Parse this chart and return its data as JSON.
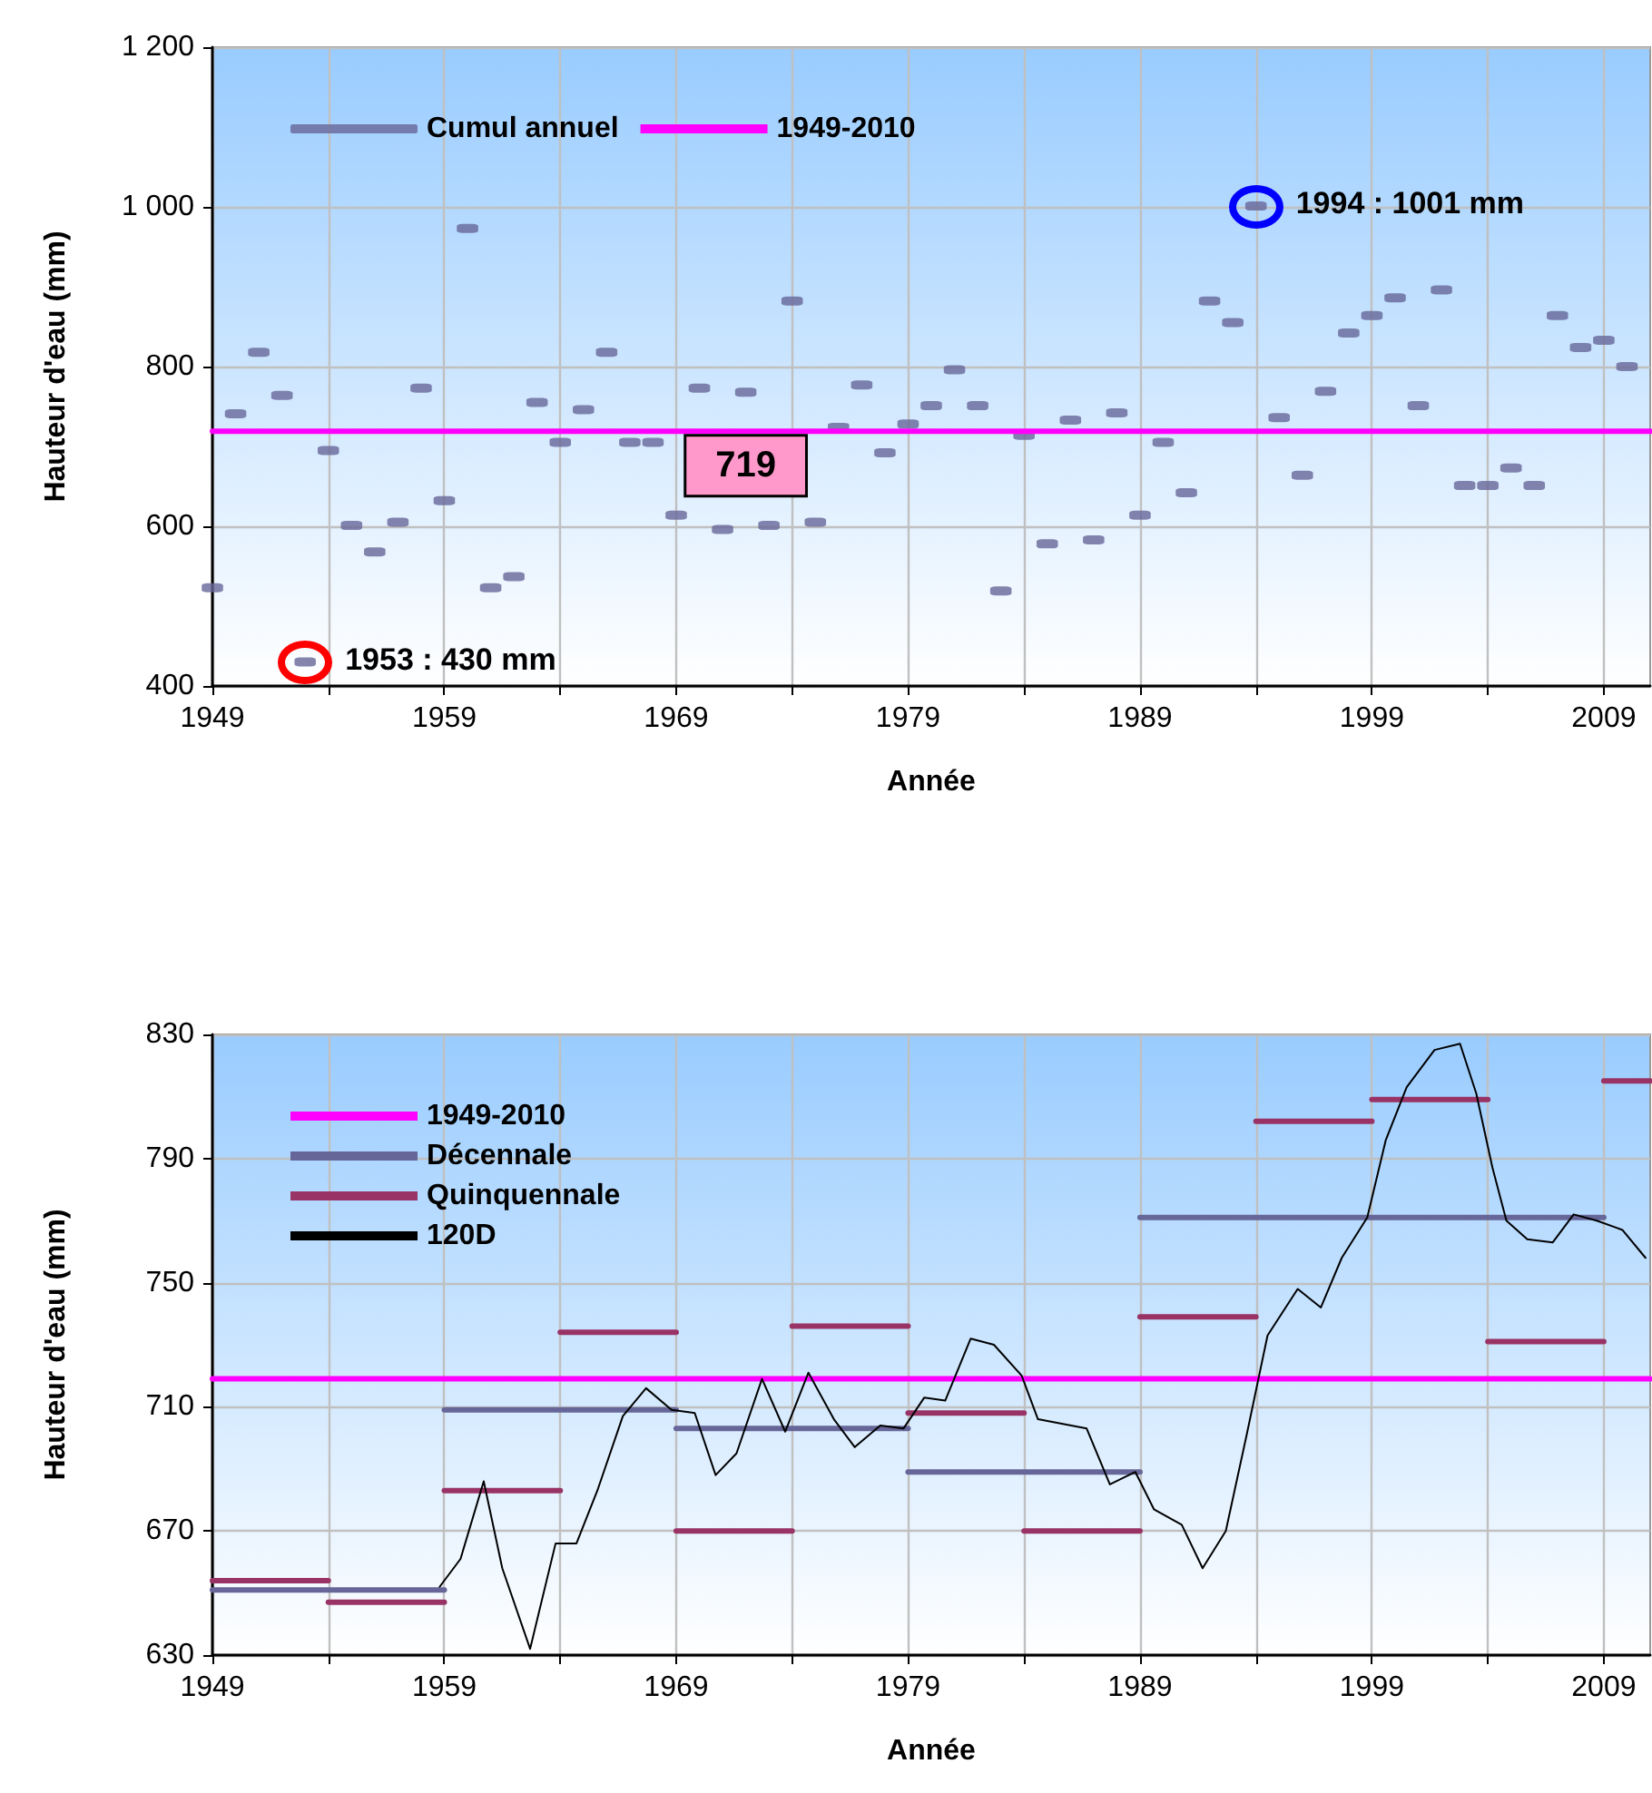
{
  "chart_data": [
    {
      "type": "scatter",
      "xlabel": "Année",
      "ylabel": "Hauteur d'eau (mm)",
      "xlim": [
        1949,
        2011
      ],
      "xticks": [
        1949,
        {
          "value": 1954,
          "label": null
        },
        1959,
        {
          "value": 1964,
          "label": null
        },
        1969,
        {
          "value": 1974,
          "label": null
        },
        1979,
        {
          "value": 1984,
          "label": null
        },
        1989,
        {
          "value": 1994,
          "label": null
        },
        1999,
        {
          "value": 2004,
          "label": null
        },
        2009
      ],
      "ylim": [
        400,
        1200
      ],
      "yticks": [
        400,
        600,
        800,
        {
          "value": 1000,
          "label": "1 000"
        },
        {
          "value": 1200,
          "label": "1 200"
        }
      ],
      "grid": true,
      "legend": "top left",
      "series": [
        {
          "name": "Cumul annuel",
          "color": "#666699",
          "x": [
            1949,
            1950,
            1951,
            1952,
            1953,
            1954,
            1955,
            1956,
            1957,
            1958,
            1959,
            1960,
            1961,
            1962,
            1963,
            1964,
            1965,
            1966,
            1967,
            1968,
            1969,
            1970,
            1971,
            1972,
            1973,
            1974,
            1975,
            1976,
            1977,
            1978,
            1979,
            1980,
            1981,
            1982,
            1983,
            1984,
            1985,
            1986,
            1987,
            1988,
            1989,
            1990,
            1991,
            1992,
            1993,
            1994,
            1995,
            1996,
            1997,
            1998,
            1999,
            2000,
            2001,
            2002,
            2003,
            2004,
            2005,
            2006,
            2007,
            2008,
            2009,
            2010
          ],
          "values": [
            523,
            741,
            818,
            764,
            430,
            695,
            601,
            568,
            605,
            773,
            632,
            973,
            523,
            537,
            755,
            705,
            746,
            818,
            705,
            705,
            614,
            773,
            596,
            768,
            601,
            882,
            605,
            724,
            777,
            692,
            728,
            751,
            796,
            751,
            519,
            714,
            578,
            733,
            583,
            742,
            614,
            705,
            642,
            882,
            855,
            1001,
            736,
            664,
            769,
            842,
            864,
            886,
            751,
            896,
            651,
            651,
            673,
            651,
            864,
            824,
            833,
            800
          ]
        },
        {
          "name": "1949-2010",
          "type": "line",
          "color": "#ff00ff",
          "x": [
            1949,
            1972,
            2011
          ],
          "values": [
            719,
            719,
            719
          ],
          "value_labels": [
            null,
            "719",
            null
          ]
        }
      ],
      "annotations": [
        {
          "text": "1953 : 430 mm",
          "x": 1953,
          "y": 430
        },
        {
          "text": "1994 : 1001 mm",
          "x": 1994,
          "y": 1001
        }
      ]
    },
    {
      "type": "line",
      "xlabel": "Année",
      "ylabel": "Hauteur d'eau (mm)",
      "xlim": [
        1949,
        2011
      ],
      "xticks": [
        1949,
        {
          "value": 1954,
          "label": null
        },
        1959,
        {
          "value": 1964,
          "label": null
        },
        1969,
        {
          "value": 1974,
          "label": null
        },
        1979,
        {
          "value": 1984,
          "label": null
        },
        1989,
        {
          "value": 1994,
          "label": null
        },
        1999,
        {
          "value": 2004,
          "label": null
        },
        2009
      ],
      "ylim": [
        630,
        830
      ],
      "yticks": [
        630,
        670,
        710,
        750,
        790,
        830
      ],
      "grid": true,
      "legend": "top left",
      "series": [
        {
          "name": "1949-2010",
          "color": "#ff00ff",
          "x": [
            1949,
            2011
          ],
          "values": [
            719,
            719
          ]
        },
        {
          "name": "Décennale",
          "color": "#666699",
          "x": [
            1949,
            1959
          ],
          "values": [
            651,
            651
          ]
        },
        {
          "color": "#666699",
          "x": [
            1959,
            1969
          ],
          "values": [
            709,
            709
          ]
        },
        {
          "color": "#666699",
          "x": [
            1969,
            1979
          ],
          "values": [
            703,
            703
          ]
        },
        {
          "color": "#666699",
          "x": [
            1979,
            1989
          ],
          "values": [
            689,
            689
          ]
        },
        {
          "color": "#666699",
          "x": [
            1989,
            2009
          ],
          "values": [
            771,
            771
          ]
        },
        {
          "name": "Quinquennale",
          "color": "#993366",
          "x": [
            1949,
            1954
          ],
          "values": [
            654,
            654
          ]
        },
        {
          "color": "#993366",
          "x": [
            1954,
            1959
          ],
          "values": [
            647,
            647
          ]
        },
        {
          "color": "#993366",
          "x": [
            1959,
            1964
          ],
          "values": [
            683,
            683
          ]
        },
        {
          "color": "#993366",
          "x": [
            1964,
            1969
          ],
          "values": [
            734,
            734
          ]
        },
        {
          "color": "#993366",
          "x": [
            1969,
            1974
          ],
          "values": [
            670,
            670
          ]
        },
        {
          "color": "#993366",
          "x": [
            1974,
            1979
          ],
          "values": [
            736,
            736
          ]
        },
        {
          "color": "#993366",
          "x": [
            1979,
            1984
          ],
          "values": [
            708,
            708
          ]
        },
        {
          "color": "#993366",
          "x": [
            1984,
            1989
          ],
          "values": [
            670,
            670
          ]
        },
        {
          "color": "#993366",
          "x": [
            1989,
            1994
          ],
          "values": [
            739,
            739
          ]
        },
        {
          "color": "#993366",
          "x": [
            1994,
            1999
          ],
          "values": [
            802,
            802
          ]
        },
        {
          "color": "#993366",
          "x": [
            1999,
            2004
          ],
          "values": [
            809,
            809
          ]
        },
        {
          "color": "#993366",
          "x": [
            2004,
            2009
          ],
          "values": [
            731,
            731
          ]
        },
        {
          "color": "#993366",
          "x": [
            2009,
            2011
          ],
          "values": [
            815,
            815
          ]
        },
        {
          "name": "120D",
          "color": "#000000",
          "x": [
            1958.8,
            1959.7,
            1960.7,
            1961.5,
            1962.7,
            1963.8,
            1964.7,
            1965.6,
            1966.7,
            1967.7,
            1968.8,
            1969.8,
            1970.7,
            1971.6,
            1972.7,
            1973.7,
            1974.7,
            1975.8,
            1976.7,
            1977.8,
            1978.8,
            1979.7,
            1980.6,
            1981.7,
            1982.7,
            1983.9,
            1984.6,
            1986.7,
            1987.7,
            1988.8,
            1989.6,
            1990.8,
            1991.7,
            1992.7,
            1993.6,
            1994.5,
            1995.8,
            1996.8,
            1997.7,
            1998.8,
            1999.6,
            2000.5,
            2001.7,
            2002.8,
            2003.5,
            2004.2,
            2004.8,
            2005.7,
            2006.8,
            2007.7,
            2008.7,
            2009.8,
            2010.8
          ],
          "values": [
            652,
            661,
            686,
            658,
            632,
            666,
            666,
            683,
            707,
            716,
            709,
            708,
            688,
            695,
            719,
            702,
            721,
            706,
            697,
            704,
            703,
            713,
            712,
            732,
            730,
            720,
            706,
            703,
            685,
            689,
            677,
            672,
            658,
            670,
            701,
            733,
            748,
            742,
            758,
            771,
            796,
            813,
            825,
            827,
            811,
            787,
            770,
            764,
            763,
            772,
            770,
            767,
            758
          ]
        }
      ]
    }
  ]
}
